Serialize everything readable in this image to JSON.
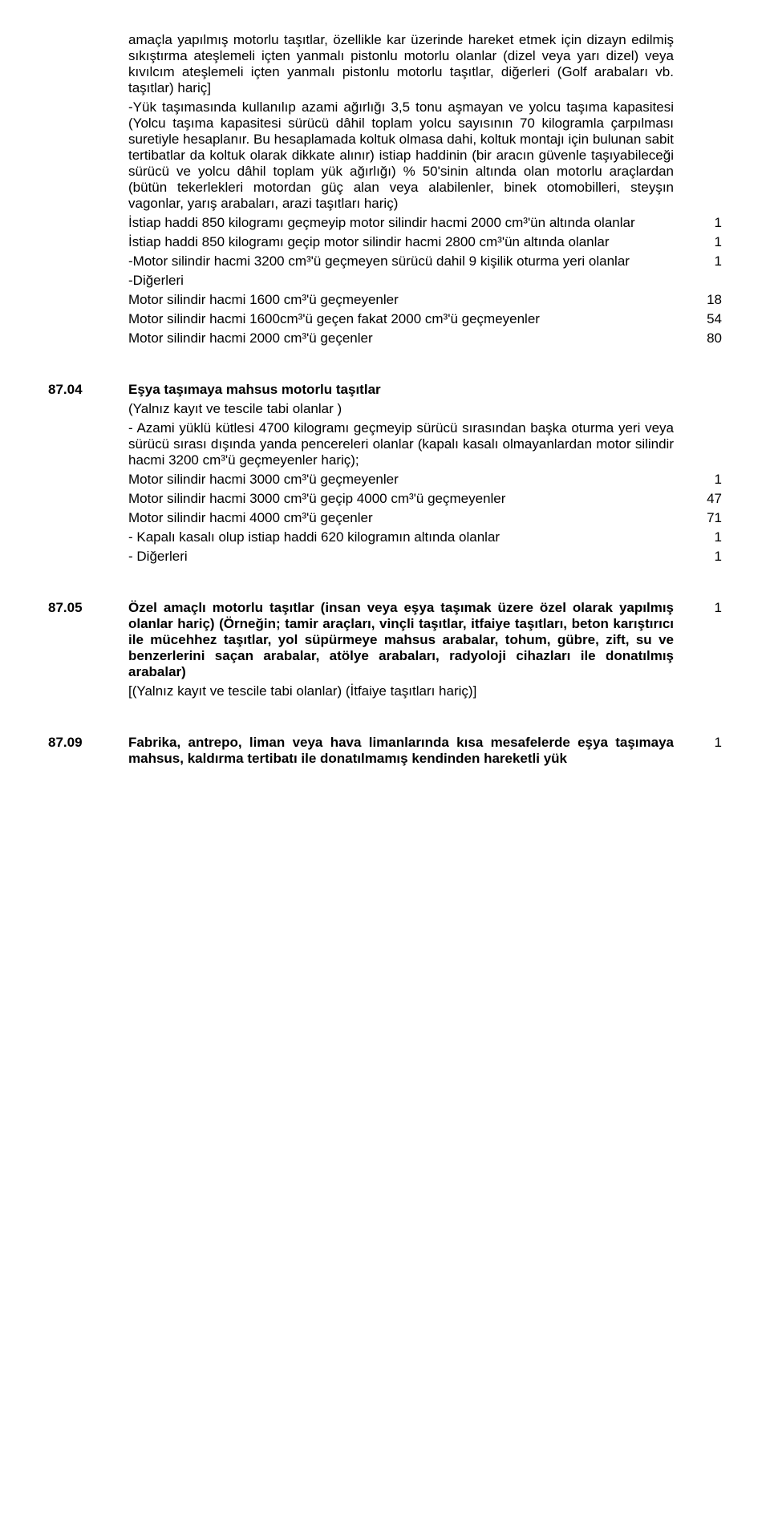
{
  "p1": "amaçla yapılmış motorlu taşıtlar, özellikle kar üzerinde hareket etmek için dizayn edilmiş sıkıştırma ateşlemeli içten yanmalı pistonlu motorlu olanlar (dizel veya yarı dizel) veya kıvılcım ateşlemeli içten yanmalı pistonlu motorlu taşıtlar, diğerleri (Golf arabaları vb. taşıtlar) hariç]",
  "p2": "-Yük taşımasında kullanılıp azami ağırlığı 3,5 tonu aşmayan ve yolcu taşıma kapasitesi (Yolcu taşıma kapasitesi sürücü dâhil toplam yolcu sayısının 70 kilogramla çarpılması suretiyle hesaplanır. Bu hesaplamada koltuk olmasa dahi, koltuk montajı için bulunan sabit tertibatlar da koltuk olarak dikkate alınır) istiap haddinin (bir aracın güvenle taşıyabileceği sürücü ve yolcu dâhil toplam yük ağırlığı) % 50'sinin altında olan motorlu araçlardan (bütün tekerlekleri motordan güç alan veya alabilenler, binek otomobilleri, steyşın vagonlar, yarış arabaları, arazi taşıtları hariç)",
  "p3": "İstiap haddi 850 kilogramı geçmeyip motor silindir hacmi 2000 cm³'ün altında olanlar",
  "p3n": "1",
  "p4": "İstiap haddi 850 kilogramı geçip motor silindir hacmi 2800 cm³'ün altında olanlar",
  "p4n": "1",
  "p5": "-Motor silindir hacmi 3200 cm³'ü geçmeyen sürücü dahil 9 kişilik oturma yeri olanlar",
  "p5n": "1",
  "p6": "-Diğerleri",
  "p7": "Motor silindir hacmi 1600 cm³'ü geçmeyenler",
  "p7n": "18",
  "p8": "Motor silindir hacmi 1600cm³'ü geçen fakat 2000 cm³'ü geçmeyenler",
  "p8n": "54",
  "p9": "Motor silindir hacmi 2000 cm³'ü geçenler",
  "p9n": "80",
  "c2": "87.04",
  "h2": "Eşya taşımaya mahsus motorlu taşıtlar",
  "p10": "(Yalnız kayıt ve tescile tabi olanlar )",
  "p11": "- Azami yüklü kütlesi 4700 kilogramı geçmeyip sürücü sırasından başka oturma yeri veya sürücü sırası dışında yanda pencereleri olanlar (kapalı kasalı olmayanlardan motor silindir hacmi 3200 cm³'ü geçmeyenler hariç);",
  "p12": "Motor silindir hacmi 3000 cm³'ü geçmeyenler",
  "p12n": "1",
  "p13": "Motor silindir hacmi 3000 cm³'ü geçip 4000 cm³'ü geçmeyenler",
  "p13n": "47",
  "p14": "Motor silindir hacmi 4000 cm³'ü geçenler",
  "p14n": "71",
  "p15": "- Kapalı kasalı olup istiap haddi 620 kilogramın altında olanlar",
  "p15n": "1",
  "p16": "- Diğerleri",
  "p16n": "1",
  "c3": "87.05",
  "h3": "Özel amaçlı motorlu taşıtlar (insan veya eşya taşımak üzere özel olarak yapılmış olanlar hariç) (Örneğin; tamir araçları, vinçli taşıtlar, itfaiye taşıtları, beton karıştırıcı ile mücehhez taşıtlar, yol süpürmeye mahsus arabalar, tohum, gübre, zift, su ve benzerlerini saçan arabalar, atölye arabaları, radyoloji cihazları ile donatılmış arabalar)",
  "h3n": "1",
  "p17": "[(Yalnız kayıt ve tescile tabi olanlar) (İtfaiye taşıtları hariç)]",
  "c4": "87.09",
  "h4": "Fabrika, antrepo, liman veya hava limanlarında kısa mesafelerde eşya taşımaya mahsus, kaldırma tertibatı ile donatılmamış kendinden hareketli yük",
  "h4n": "1"
}
